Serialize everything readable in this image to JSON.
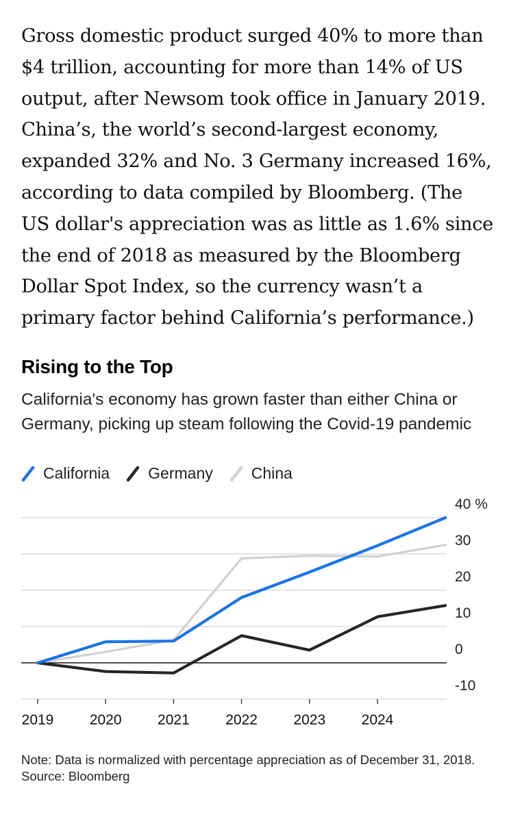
{
  "article": {
    "paragraph": "Gross domestic product surged 40% to more than $4 trillion, accounting for more than 14% of US output, after Newsom took office in January 2019. China’s, the world’s second-largest economy, expanded 32% and No. 3 Germany increased 16%, according to data compiled by Bloomberg. (The US dollar's appreciation was as little as 1.6% since the end of 2018 as measured by the Bloomberg Dollar Spot Index, so the currency wasn’t a primary factor behind California’s performance.)"
  },
  "chart_data": {
    "type": "line",
    "title": "Rising to the Top",
    "subtitle": "California's economy has grown faster than either China or Germany, picking up steam following the Covid-19 pandemic",
    "xlabel": "",
    "ylabel": "",
    "x": [
      2019,
      2020,
      2021,
      2022,
      2023,
      2024,
      2025
    ],
    "x_tick_labels": [
      "2019",
      "2020",
      "2021",
      "2022",
      "2023",
      "2024"
    ],
    "xlim": [
      2019,
      2025
    ],
    "ylim": [
      -10,
      40
    ],
    "y_ticks": [
      40,
      30,
      20,
      10,
      0,
      -10
    ],
    "y_tick_labels": [
      "40 %",
      "30",
      "20",
      "10",
      "0",
      "-10"
    ],
    "legend_position": "top-left",
    "grid": true,
    "series": [
      {
        "name": "California",
        "color": "#1a73e8",
        "values": [
          0,
          5.8,
          6.0,
          18.0,
          25.0,
          32.3,
          40.0
        ]
      },
      {
        "name": "Germany",
        "color": "#262626",
        "values": [
          0,
          -2.4,
          -2.8,
          7.5,
          3.5,
          12.7,
          15.8
        ]
      },
      {
        "name": "China",
        "color": "#d0d0d0",
        "values": [
          0,
          3.0,
          6.3,
          28.8,
          29.5,
          29.3,
          32.5
        ]
      }
    ],
    "note": "Note: Data is normalized with percentage appreciation as of December 31, 2018.",
    "source": "Source: Bloomberg"
  }
}
